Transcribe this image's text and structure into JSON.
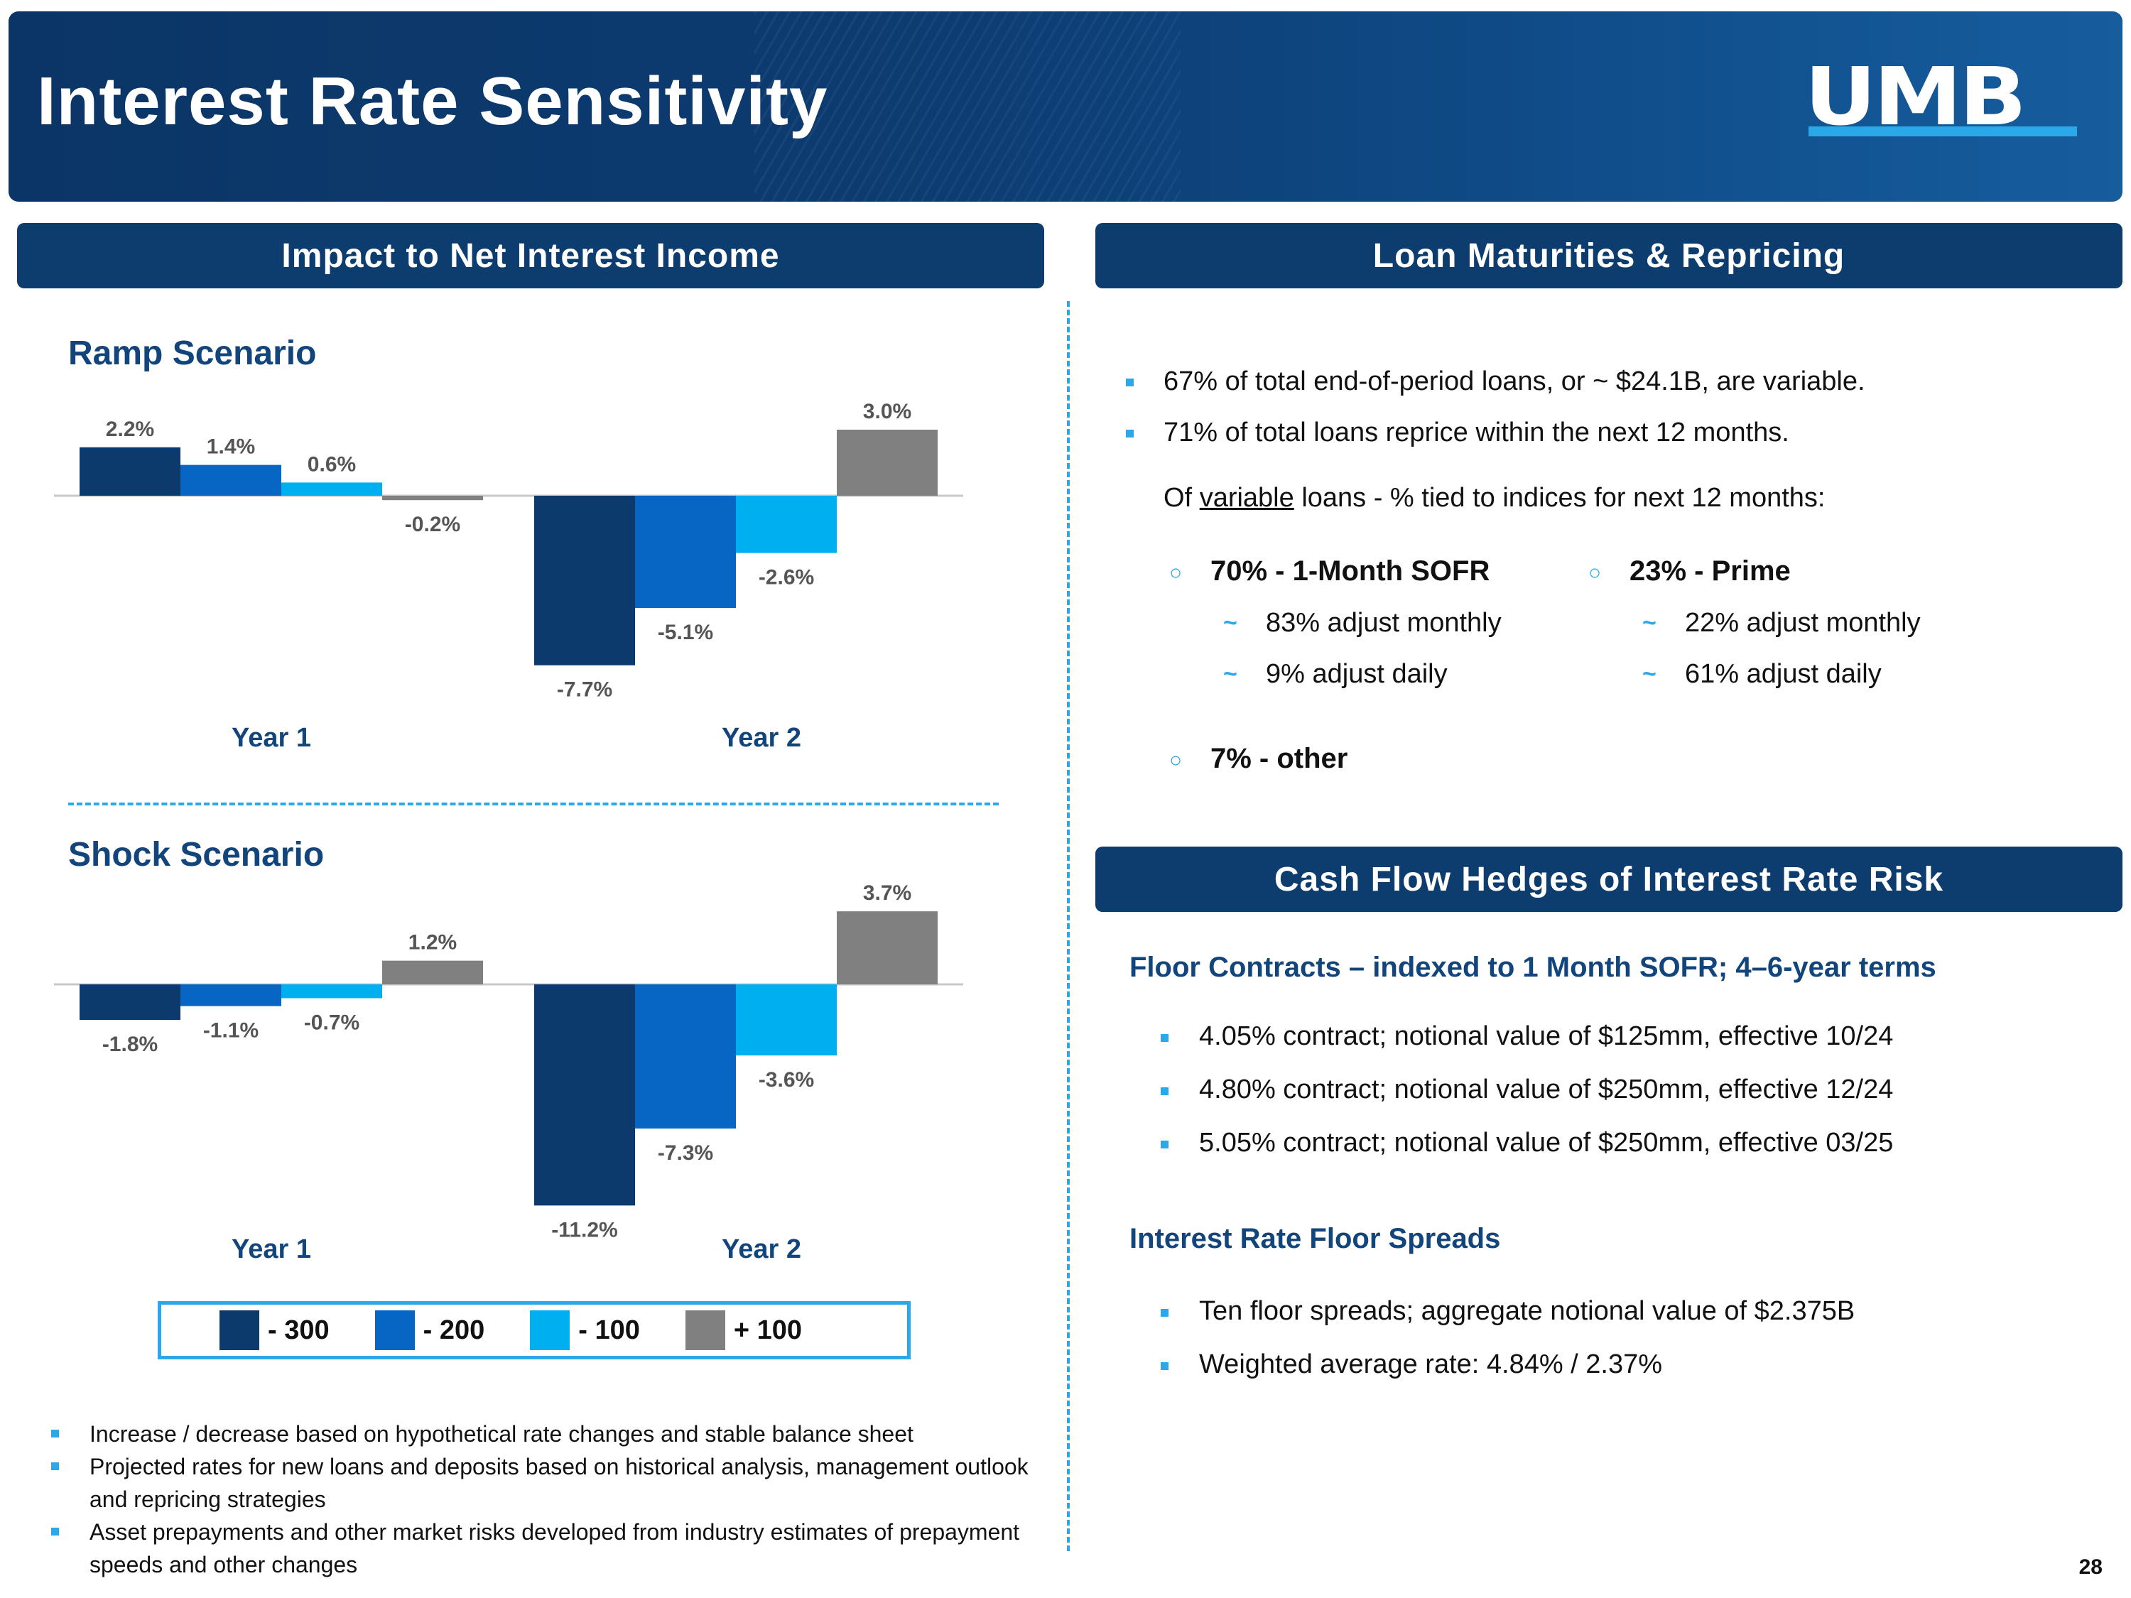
{
  "header": {
    "title": "Interest Rate Sensitivity",
    "logo": "UMB"
  },
  "left": {
    "section_title": "Impact to Net Interest Income",
    "ramp_title": "Ramp Scenario",
    "shock_title": "Shock Scenario",
    "legend": [
      {
        "label": "- 300",
        "color": "#0c3a6c"
      },
      {
        "label": "- 200",
        "color": "#0766c4"
      },
      {
        "label": "- 100",
        "color": "#00aff0"
      },
      {
        "label": "+ 100",
        "color": "#808080"
      }
    ],
    "notes": [
      "Increase / decrease based on hypothetical rate changes and stable balance sheet",
      "Projected rates for new loans and deposits based on historical analysis, management outlook and repricing strategies",
      "Asset prepayments and other market risks developed from industry estimates of prepayment speeds and other changes"
    ]
  },
  "chart_data": [
    {
      "type": "bar",
      "title": "Ramp Scenario",
      "categories": [
        "Year 1",
        "Year 2"
      ],
      "unit": "%",
      "series": [
        {
          "name": "- 300",
          "color": "#0c3a6c",
          "values": [
            2.2,
            -7.7
          ]
        },
        {
          "name": "- 200",
          "color": "#0766c4",
          "values": [
            1.4,
            -5.1
          ]
        },
        {
          "name": "- 100",
          "color": "#00aff0",
          "values": [
            0.6,
            -2.6
          ]
        },
        {
          "name": "+ 100",
          "color": "#808080",
          "values": [
            -0.2,
            3.0
          ]
        }
      ]
    },
    {
      "type": "bar",
      "title": "Shock Scenario",
      "categories": [
        "Year 1",
        "Year 2"
      ],
      "unit": "%",
      "series": [
        {
          "name": "- 300",
          "color": "#0c3a6c",
          "values": [
            -1.8,
            -11.2
          ]
        },
        {
          "name": "- 200",
          "color": "#0766c4",
          "values": [
            -1.1,
            -7.3
          ]
        },
        {
          "name": "- 100",
          "color": "#00aff0",
          "values": [
            -0.7,
            -3.6
          ]
        },
        {
          "name": "+ 100",
          "color": "#808080",
          "values": [
            1.2,
            3.7
          ]
        }
      ]
    }
  ],
  "right": {
    "loan_title": "Loan Maturities & Repricing",
    "loan_bullets": [
      "67% of total end-of-period loans, or ~ $24.1B, are variable.",
      "71% of total loans reprice within the next 12 months."
    ],
    "variable_intro": {
      "prefix": "Of ",
      "underlined": "variable",
      "suffix": " loans - % tied to indices for next 12 months:"
    },
    "indices": {
      "sofr": {
        "title": "70% - 1-Month SOFR",
        "items": [
          "83% adjust monthly",
          "9% adjust daily"
        ]
      },
      "prime": {
        "title": "23% - Prime",
        "items": [
          "22% adjust monthly",
          "61% adjust daily"
        ]
      },
      "other": {
        "title": "7% - other"
      }
    },
    "hedge_title": "Cash Flow Hedges of Interest Rate Risk",
    "floor_title": "Floor Contracts – indexed to 1 Month SOFR; 4–6-year terms",
    "floor_items": [
      "4.05% contract; notional value of $125mm, effective 10/24",
      "4.80% contract; notional value of $250mm, effective 12/24",
      "5.05% contract; notional value of $250mm, effective 03/25"
    ],
    "spread_title": "Interest Rate Floor Spreads",
    "spread_items": [
      "Ten floor spreads; aggregate notional value of $2.375B",
      "Weighted average rate: 4.84% / 2.37%"
    ]
  },
  "page_number": "28"
}
